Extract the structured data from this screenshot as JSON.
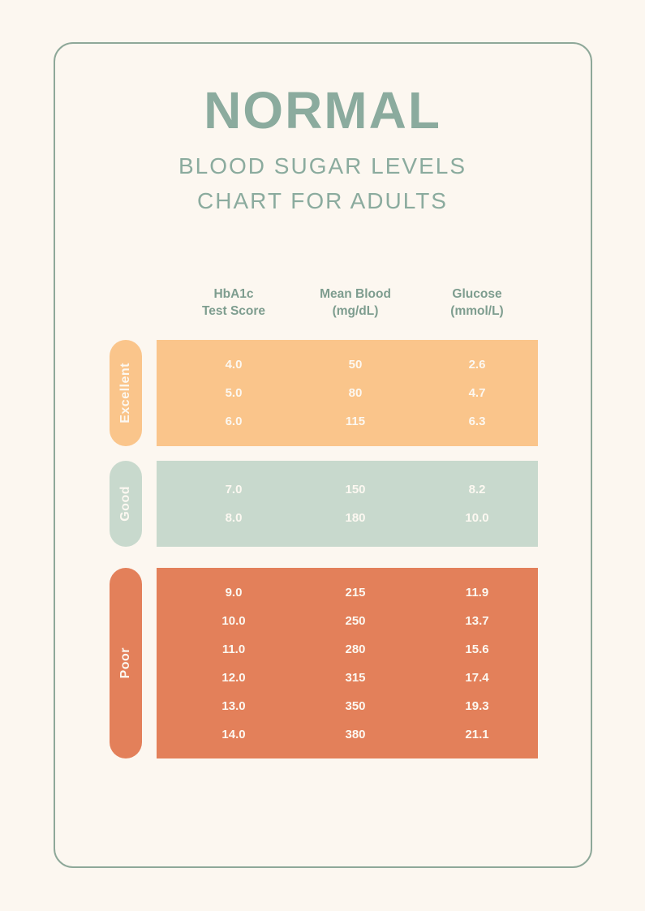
{
  "title": "NORMAL",
  "subtitle_line1": "BLOOD SUGAR LEVELS",
  "subtitle_line2": "CHART FOR ADULTS",
  "columns": [
    {
      "line1": "HbA1c",
      "line2": "Test Score"
    },
    {
      "line1": "Mean Blood",
      "line2": "(mg/dL)"
    },
    {
      "line1": "Glucose",
      "line2": "(mmol/L)"
    }
  ],
  "colors": {
    "background": "#FCF7F0",
    "frame_border": "#8EA899",
    "title_text": "#8BAB9E",
    "header_text": "#7E9D8F",
    "row_text": "#FCF8F1"
  },
  "chart_data": {
    "type": "table",
    "title": "NORMAL BLOOD SUGAR LEVELS CHART FOR ADULTS",
    "columns": [
      "HbA1c Test Score",
      "Mean Blood (mg/dL)",
      "Glucose (mmol/L)"
    ],
    "sections": [
      {
        "label": "Excellent",
        "color": "#FAC58B",
        "rows": [
          [
            "4.0",
            "50",
            "2.6"
          ],
          [
            "5.0",
            "80",
            "4.7"
          ],
          [
            "6.0",
            "115",
            "6.3"
          ]
        ]
      },
      {
        "label": "Good",
        "color": "#C8D9CD",
        "rows": [
          [
            "7.0",
            "150",
            "8.2"
          ],
          [
            "8.0",
            "180",
            "10.0"
          ]
        ]
      },
      {
        "label": "Poor",
        "color": "#E3805A",
        "rows": [
          [
            "9.0",
            "215",
            "11.9"
          ],
          [
            "10.0",
            "250",
            "13.7"
          ],
          [
            "11.0",
            "280",
            "15.6"
          ],
          [
            "12.0",
            "315",
            "17.4"
          ],
          [
            "13.0",
            "350",
            "19.3"
          ],
          [
            "14.0",
            "380",
            "21.1"
          ]
        ]
      }
    ]
  }
}
